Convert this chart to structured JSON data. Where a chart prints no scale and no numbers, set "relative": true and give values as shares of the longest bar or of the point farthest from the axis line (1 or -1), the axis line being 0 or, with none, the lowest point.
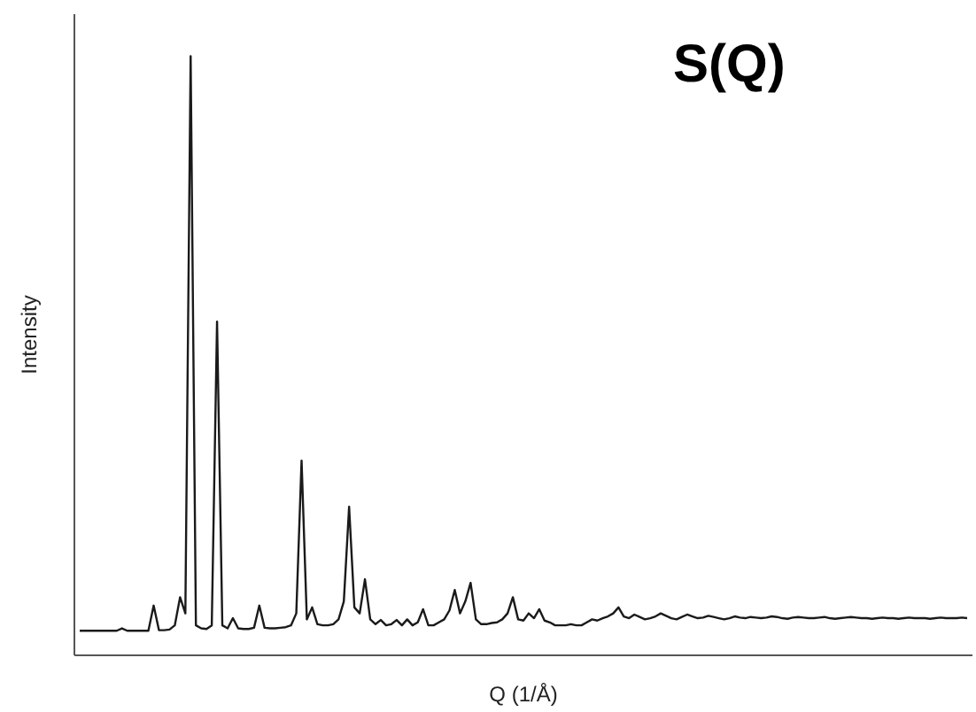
{
  "chart_data": {
    "type": "line",
    "title": "S(Q)",
    "xlabel": "Q (1/Å)",
    "ylabel": "Intensity",
    "relative": true,
    "color": "#1a1a1a",
    "categories": [
      null,
      null,
      null,
      null,
      null,
      null,
      null,
      null,
      null,
      null,
      null,
      null,
      null,
      null,
      null,
      null,
      null,
      null,
      null,
      null,
      null,
      null,
      null,
      null,
      null,
      null,
      null,
      null,
      null,
      null,
      null,
      null,
      null,
      null,
      null,
      null,
      null,
      null,
      null,
      null,
      null,
      null,
      null,
      null,
      null,
      null,
      null,
      null,
      null,
      null,
      null,
      null,
      null,
      null,
      null,
      null,
      null,
      null,
      null,
      null,
      null,
      null,
      null,
      null,
      null,
      null,
      null,
      null,
      null,
      null,
      null,
      null,
      null,
      null,
      null,
      null,
      null,
      null,
      null,
      null,
      null,
      null,
      null,
      null,
      null,
      null,
      null,
      null,
      null,
      null,
      null,
      null,
      null,
      null,
      null,
      null,
      null,
      null,
      null,
      null,
      null,
      null,
      null,
      null,
      null,
      null,
      null,
      null,
      null,
      null,
      null,
      null,
      null,
      null,
      null,
      null,
      null,
      null,
      null,
      null,
      null,
      null,
      null,
      null,
      null,
      null,
      null,
      null,
      null,
      null,
      null,
      null,
      null,
      null,
      null,
      null,
      null,
      null,
      null,
      null,
      null,
      null,
      null,
      null,
      null,
      null,
      null,
      null,
      null,
      null,
      null,
      null,
      null,
      null,
      null,
      null,
      null,
      null,
      null,
      null,
      null,
      null,
      null,
      null,
      null,
      null,
      null,
      null,
      null
    ],
    "values": [
      0.041,
      0.041,
      0.041,
      0.041,
      0.041,
      0.041,
      0.041,
      0.041,
      0.045,
      0.041,
      0.041,
      0.041,
      0.041,
      0.041,
      0.083,
      0.042,
      0.042,
      0.043,
      0.05,
      0.097,
      0.07,
      1,
      0.05,
      0.045,
      0.044,
      0.05,
      0.557,
      0.05,
      0.045,
      0.062,
      0.045,
      0.044,
      0.044,
      0.046,
      0.083,
      0.046,
      0.045,
      0.045,
      0.046,
      0.047,
      0.05,
      0.07,
      0.325,
      0.06,
      0.08,
      0.052,
      0.05,
      0.05,
      0.052,
      0.06,
      0.09,
      0.248,
      0.08,
      0.07,
      0.127,
      0.06,
      0.052,
      0.059,
      0.05,
      0.052,
      0.059,
      0.05,
      0.06,
      0.05,
      0.055,
      0.077,
      0.05,
      0.05,
      0.055,
      0.06,
      0.075,
      0.109,
      0.07,
      0.09,
      0.121,
      0.06,
      0.052,
      0.052,
      0.054,
      0.055,
      0.06,
      0.07,
      0.097,
      0.06,
      0.058,
      0.07,
      0.062,
      0.077,
      0.058,
      0.055,
      0.05,
      0.05,
      0.05,
      0.052,
      0.05,
      0.05,
      0.055,
      0.06,
      0.058,
      0.062,
      0.065,
      0.07,
      0.08,
      0.065,
      0.062,
      0.068,
      0.064,
      0.06,
      0.062,
      0.065,
      0.07,
      0.066,
      0.062,
      0.06,
      0.064,
      0.068,
      0.065,
      0.062,
      0.063,
      0.066,
      0.064,
      0.062,
      0.06,
      0.062,
      0.065,
      0.063,
      0.062,
      0.064,
      0.063,
      0.062,
      0.063,
      0.065,
      0.064,
      0.062,
      0.061,
      0.063,
      0.064,
      0.063,
      0.062,
      0.062,
      0.063,
      0.064,
      0.062,
      0.061,
      0.062,
      0.063,
      0.064,
      0.063,
      0.062,
      0.062,
      0.061,
      0.062,
      0.063,
      0.062,
      0.062,
      0.061,
      0.062,
      0.063,
      0.062,
      0.062,
      0.062,
      0.061,
      0.062,
      0.063,
      0.062,
      0.062,
      0.062,
      0.063,
      0.062
    ]
  }
}
